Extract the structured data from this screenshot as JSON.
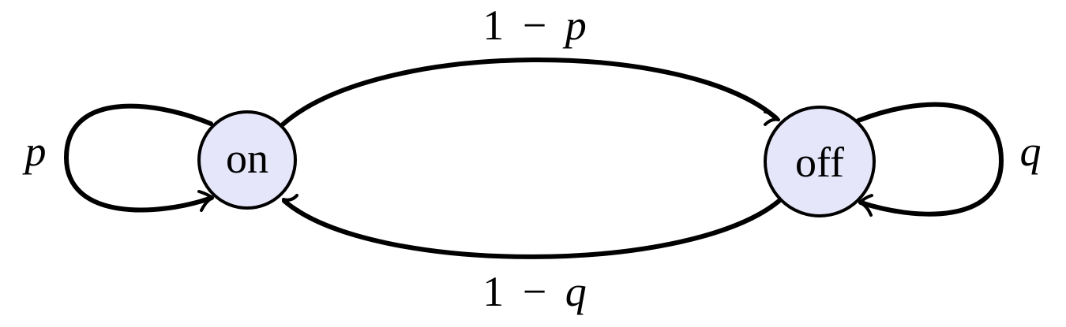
{
  "diagram": {
    "states": [
      {
        "id": "on",
        "label": "on"
      },
      {
        "id": "off",
        "label": "off"
      }
    ],
    "transitions": [
      {
        "from": "on",
        "to": "off",
        "prob_number": "1",
        "prob_operator": "−",
        "prob_var": "p"
      },
      {
        "from": "off",
        "to": "on",
        "prob_number": "1",
        "prob_operator": "−",
        "prob_var": "q"
      },
      {
        "from": "on",
        "to": "on",
        "prob_var": "p"
      },
      {
        "from": "off",
        "to": "off",
        "prob_var": "q"
      }
    ],
    "node_fill": "#e6e6fa",
    "stroke_color": "#000000"
  }
}
